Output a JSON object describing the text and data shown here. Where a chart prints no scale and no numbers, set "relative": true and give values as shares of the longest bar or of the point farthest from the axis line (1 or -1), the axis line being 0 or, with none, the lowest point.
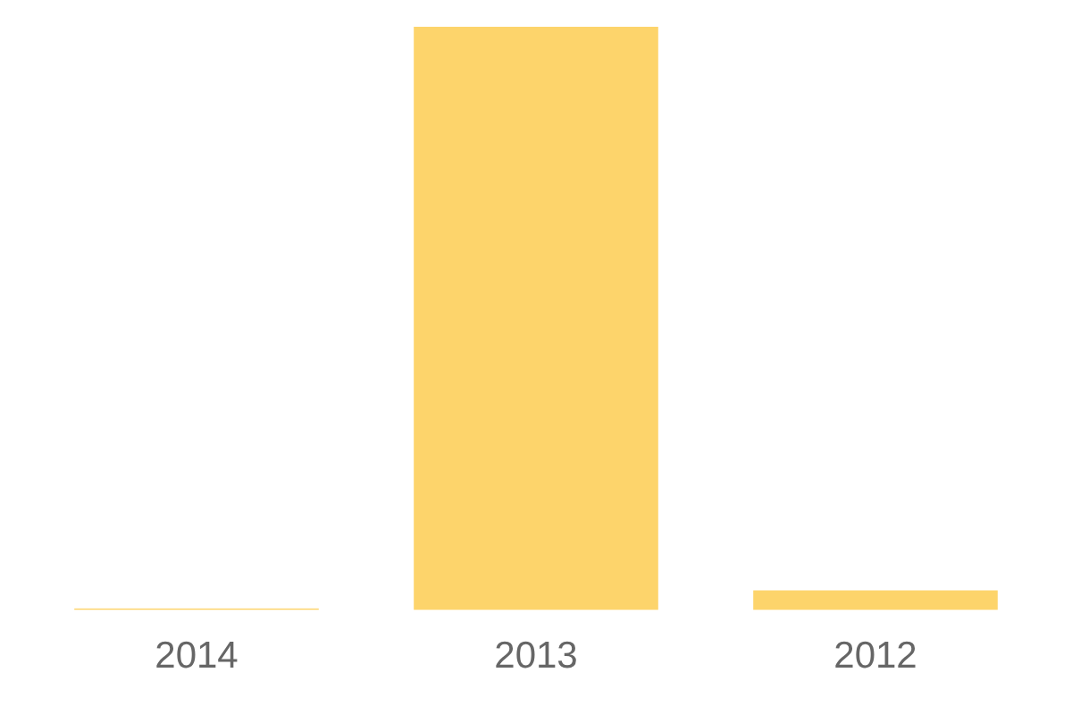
{
  "chart_data": {
    "type": "bar",
    "relative": true,
    "categories": [
      "2014",
      "2013",
      "2012"
    ],
    "values": [
      0.003,
      1,
      0.034
    ],
    "color": "#fdd46b",
    "grid": false,
    "legend": false
  }
}
